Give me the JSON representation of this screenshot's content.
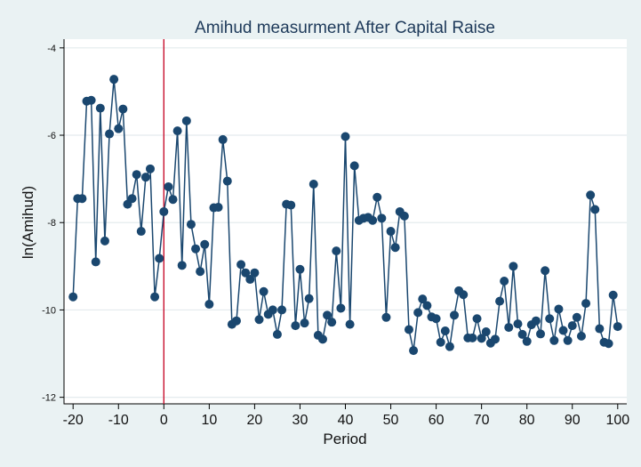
{
  "chart_data": {
    "type": "line",
    "title": "Amihud measurment  After Capital Raise",
    "xlabel": "Period",
    "ylabel": "ln(Amihud)",
    "xlim": [
      -22,
      102
    ],
    "ylim": [
      -12.15,
      -3.8
    ],
    "xticks": [
      -20,
      -10,
      0,
      10,
      20,
      30,
      40,
      50,
      60,
      70,
      80,
      90,
      100
    ],
    "xtick_labels": [
      "-20",
      "-10",
      "0",
      "10",
      "20",
      "30",
      "40",
      "50",
      "60",
      "70",
      "80",
      "90",
      "100"
    ],
    "yticks": [
      -4,
      -6,
      -8,
      -10,
      -12
    ],
    "ytick_labels": [
      "-4",
      "-6",
      "-8",
      "-10",
      "-12"
    ],
    "grid": true,
    "reference_line": {
      "x": 0,
      "color": "#c8102e"
    },
    "series_color": "#1a476f",
    "background_color": "#eaf2f3",
    "plot_background_color": "#ffffff",
    "x": [
      -20,
      -19,
      -18,
      -17,
      -16,
      -15,
      -14,
      -13,
      -12,
      -11,
      -10,
      -9,
      -8,
      -7,
      -6,
      -5,
      -4,
      -3,
      -2,
      -1,
      0,
      1,
      2,
      3,
      4,
      5,
      6,
      7,
      8,
      9,
      10,
      11,
      12,
      13,
      14,
      15,
      16,
      17,
      18,
      19,
      20,
      21,
      22,
      23,
      24,
      25,
      26,
      27,
      28,
      29,
      30,
      31,
      32,
      33,
      34,
      35,
      36,
      37,
      38,
      39,
      40,
      41,
      42,
      43,
      44,
      45,
      46,
      47,
      48,
      49,
      50,
      51,
      52,
      53,
      54,
      55,
      56,
      57,
      58,
      59,
      60,
      61,
      62,
      63,
      64,
      65,
      66,
      67,
      68,
      69,
      70,
      71,
      72,
      73,
      74,
      75,
      76,
      77,
      78,
      79,
      80,
      81,
      82,
      83,
      84,
      85,
      86,
      87,
      88,
      89,
      90,
      91,
      92,
      93,
      94,
      95,
      96,
      97,
      98,
      99,
      100
    ],
    "values": [
      -9.7,
      -7.45,
      -7.45,
      -5.22,
      -5.2,
      -8.9,
      -5.38,
      -8.42,
      -5.97,
      -4.72,
      -5.85,
      -5.4,
      -7.58,
      -7.45,
      -6.9,
      -8.2,
      -6.96,
      -6.77,
      -9.7,
      -8.82,
      -7.75,
      -7.18,
      -7.47,
      -5.9,
      -8.98,
      -5.67,
      -8.04,
      -8.6,
      -9.12,
      -8.5,
      -9.87,
      -7.66,
      -7.65,
      -6.1,
      -7.05,
      -10.33,
      -10.25,
      -8.96,
      -9.15,
      -9.3,
      -9.15,
      -10.22,
      -9.58,
      -10.1,
      -10.0,
      -10.56,
      -10.0,
      -7.58,
      -7.6,
      -10.36,
      -9.07,
      -10.3,
      -9.74,
      -7.12,
      -10.58,
      -10.67,
      -10.12,
      -10.28,
      -8.65,
      -9.96,
      -6.03,
      -10.33,
      -6.7,
      -7.95,
      -7.9,
      -7.88,
      -7.95,
      -7.42,
      -7.9,
      -10.17,
      -8.2,
      -8.57,
      -7.75,
      -7.85,
      -10.45,
      -10.93,
      -10.06,
      -9.75,
      -9.9,
      -10.16,
      -10.2,
      -10.74,
      -10.48,
      -10.84,
      -10.12,
      -9.56,
      -9.65,
      -10.64,
      -10.64,
      -10.2,
      -10.65,
      -10.5,
      -10.76,
      -10.67,
      -9.8,
      -9.34,
      -10.4,
      -9.0,
      -10.32,
      -10.56,
      -10.72,
      -10.34,
      -10.25,
      -10.55,
      -9.1,
      -10.2,
      -10.7,
      -9.98,
      -10.47,
      -10.7,
      -10.36,
      -10.17,
      -10.6,
      -9.85,
      -7.37,
      -7.7,
      -10.43,
      -10.74,
      -10.77,
      -9.66,
      -10.38
    ]
  }
}
